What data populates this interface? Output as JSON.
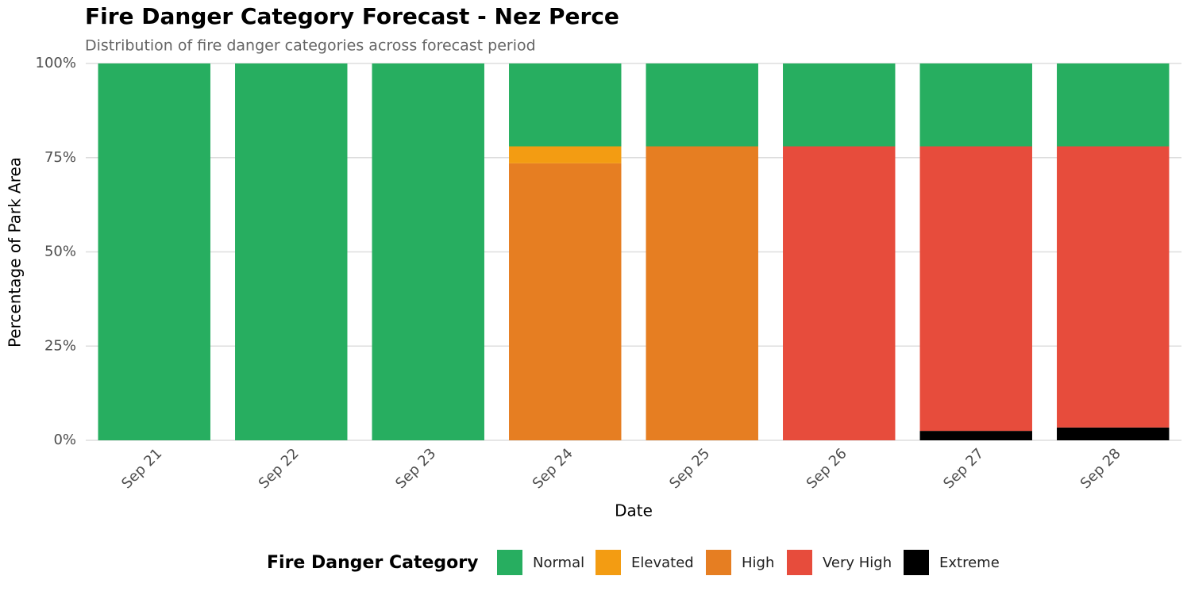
{
  "chart_data": {
    "type": "stacked-bar",
    "title": "Fire Danger Category Forecast - Nez Perce",
    "subtitle": "Distribution of fire danger categories across forecast period",
    "x_label": "Date",
    "y_label": "Percentage of Park Area",
    "legend_title": "Fire Danger Category",
    "legend_position": "bottom",
    "grid": true,
    "categories": [
      "Sep 21",
      "Sep 22",
      "Sep 23",
      "Sep 24",
      "Sep 25",
      "Sep 26",
      "Sep 27",
      "Sep 28"
    ],
    "series": [
      {
        "name": "Normal",
        "color": "#27ae60",
        "values": [
          100,
          100,
          100,
          22,
          22,
          22,
          22,
          22
        ]
      },
      {
        "name": "Elevated",
        "color": "#f39c12",
        "values": [
          0,
          0,
          0,
          4.5,
          0,
          0,
          0,
          0
        ]
      },
      {
        "name": "High",
        "color": "#e67e22",
        "values": [
          0,
          0,
          0,
          73.5,
          78,
          0,
          0,
          0
        ]
      },
      {
        "name": "Very High",
        "color": "#e74c3c",
        "values": [
          0,
          0,
          0,
          0,
          0,
          78,
          75.5,
          74.6
        ]
      },
      {
        "name": "Extreme",
        "color": "#000000",
        "values": [
          0,
          0,
          0,
          0,
          0,
          0,
          2.5,
          3.4
        ]
      }
    ],
    "ylim": [
      0,
      100
    ],
    "yticks": [
      {
        "value": 0,
        "label": "0%"
      },
      {
        "value": 25,
        "label": "25%"
      },
      {
        "value": 50,
        "label": "50%"
      },
      {
        "value": 75,
        "label": "75%"
      },
      {
        "value": 100,
        "label": "100%"
      }
    ]
  }
}
